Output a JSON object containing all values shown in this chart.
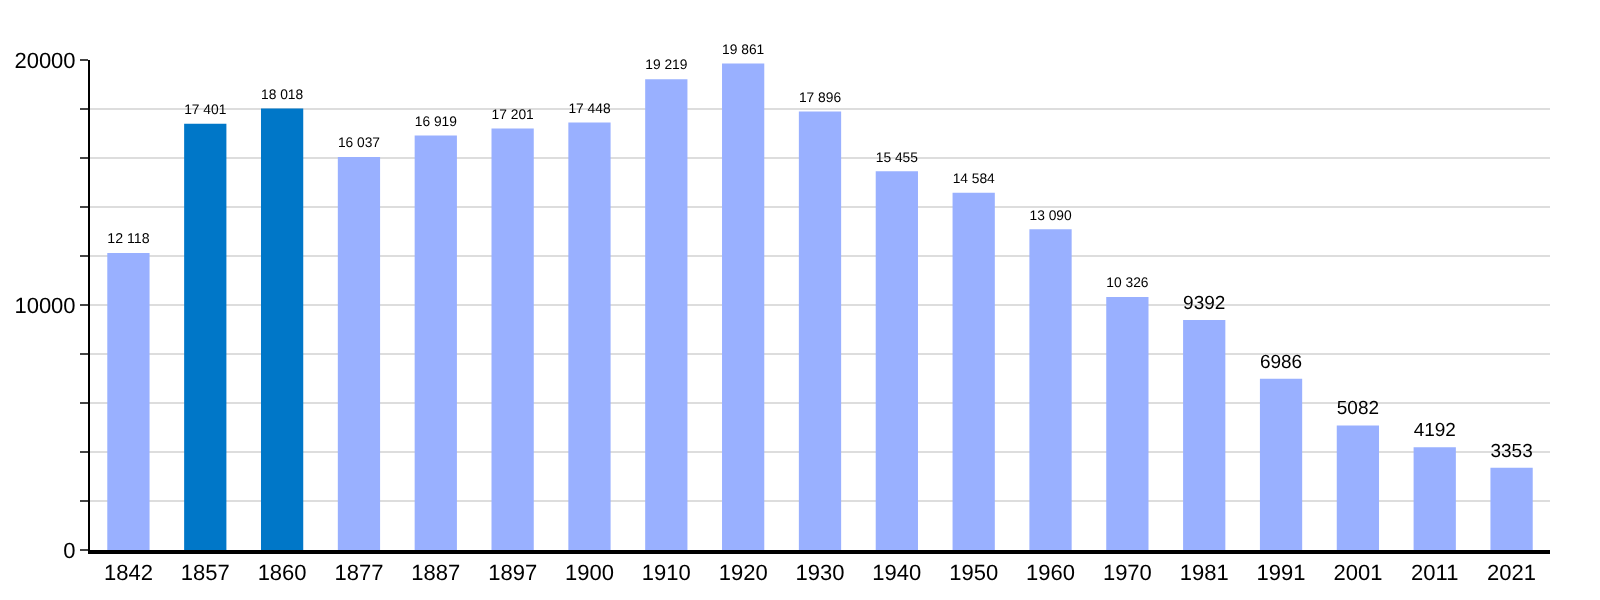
{
  "chart_data": {
    "type": "bar",
    "categories": [
      "1842",
      "1857",
      "1860",
      "1877",
      "1887",
      "1897",
      "1900",
      "1910",
      "1920",
      "1930",
      "1940",
      "1950",
      "1960",
      "1970",
      "1981",
      "1991",
      "2001",
      "2011",
      "2021"
    ],
    "values": [
      12118,
      17401,
      18018,
      16037,
      16919,
      17201,
      17448,
      19219,
      19861,
      17896,
      15455,
      14584,
      13090,
      10326,
      9392,
      6986,
      5082,
      4192,
      3353
    ],
    "colors": [
      "#99b0ff",
      "#0077c8",
      "#0077c8",
      "#99b0ff",
      "#99b0ff",
      "#99b0ff",
      "#99b0ff",
      "#99b0ff",
      "#99b0ff",
      "#99b0ff",
      "#99b0ff",
      "#99b0ff",
      "#99b0ff",
      "#99b0ff",
      "#99b0ff",
      "#99b0ff",
      "#99b0ff",
      "#99b0ff",
      "#99b0ff"
    ],
    "value_labels": [
      "12 118",
      "17 401",
      "18 018",
      "16 037",
      "16 919",
      "17 201",
      "17 448",
      "19 219",
      "19 861",
      "17 896",
      "15 455",
      "14 584",
      "13 090",
      "10 326",
      "9392",
      "6986",
      "5082",
      "4192",
      "3353"
    ],
    "ylim": [
      0,
      20000
    ],
    "yticks": [
      0,
      {
        "value": 2000,
        "label": null
      },
      {
        "value": 4000,
        "label": null
      },
      {
        "value": 6000,
        "label": null
      },
      {
        "value": 8000,
        "label": null
      },
      10000,
      {
        "value": 12000,
        "label": null
      },
      {
        "value": 14000,
        "label": null
      },
      {
        "value": 16000,
        "label": null
      },
      {
        "value": 18000,
        "label": null
      },
      20000
    ],
    "grid": true
  }
}
